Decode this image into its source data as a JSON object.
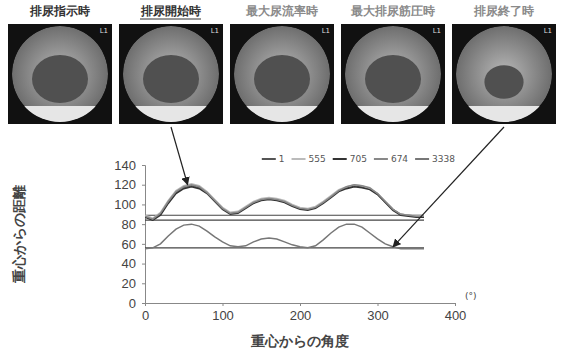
{
  "chart_data": {
    "type": "line",
    "xlabel": "重心からの角度",
    "ylabel": "重心からの距離",
    "x_unit_label": "(°)",
    "x": [
      0,
      10,
      20,
      30,
      40,
      50,
      60,
      70,
      80,
      90,
      100,
      110,
      120,
      130,
      140,
      150,
      160,
      170,
      180,
      190,
      200,
      210,
      220,
      230,
      240,
      250,
      260,
      270,
      280,
      290,
      300,
      310,
      320,
      330,
      340,
      350,
      360
    ],
    "series": [
      {
        "name": "1",
        "color": "#555555",
        "values": [
          88,
          84,
          90,
          102,
          112,
          117,
          119,
          117,
          112,
          104,
          96,
          91,
          92,
          97,
          102,
          105,
          106,
          105,
          103,
          99,
          96,
          95,
          97,
          102,
          108,
          114,
          117,
          119,
          118,
          116,
          111,
          103,
          95,
          90,
          89,
          88,
          88
        ]
      },
      {
        "name": "555",
        "color": "#bbbbbb",
        "values": [
          89,
          86,
          92,
          104,
          114,
          119,
          121,
          119,
          113,
          105,
          97,
          92,
          93,
          98,
          103,
          106,
          107,
          106,
          104,
          100,
          97,
          96,
          98,
          103,
          109,
          115,
          118,
          120,
          119,
          116,
          110,
          102,
          94,
          90,
          89,
          89,
          89
        ]
      },
      {
        "name": "705",
        "color": "#333333",
        "values": [
          87,
          84,
          89,
          101,
          111,
          116,
          118,
          116,
          111,
          103,
          95,
          90,
          91,
          96,
          101,
          104,
          105,
          104,
          102,
          98,
          95,
          94,
          96,
          101,
          107,
          113,
          116,
          118,
          117,
          115,
          110,
          102,
          94,
          89,
          88,
          87,
          87
        ]
      },
      {
        "name": "674",
        "color": "#888888",
        "values": [
          88,
          85,
          91,
          103,
          113,
          118,
          120,
          118,
          112,
          104,
          96,
          91,
          92,
          97,
          102,
          105,
          106,
          105,
          103,
          99,
          96,
          95,
          97,
          102,
          108,
          114,
          118,
          120,
          119,
          117,
          111,
          103,
          95,
          90,
          89,
          88,
          88
        ]
      },
      {
        "name": "3338",
        "color": "#777777",
        "values": [
          55,
          56,
          60,
          68,
          75,
          79,
          80,
          78,
          73,
          67,
          62,
          58,
          57,
          58,
          62,
          65,
          66,
          65,
          62,
          59,
          57,
          56,
          58,
          64,
          71,
          77,
          80,
          80,
          77,
          71,
          65,
          60,
          57,
          55,
          55,
          55,
          55
        ]
      }
    ],
    "hlines": [
      89,
      84,
      56
    ],
    "arrows": [
      {
        "panel": 1,
        "x": 55,
        "y": 120
      },
      {
        "panel": 4,
        "x": 320,
        "y": 57
      }
    ],
    "xlim": [
      0,
      400
    ],
    "xticks": [
      0,
      100,
      200,
      300,
      400
    ],
    "ylim": [
      0,
      140
    ],
    "yticks": [
      0,
      20,
      40,
      60,
      80,
      100,
      120,
      140
    ],
    "grid": false,
    "legend": "upper right"
  },
  "panels": [
    {
      "title": "排尿指示時",
      "corner_label": "L1"
    },
    {
      "title": "排尿開始時",
      "corner_label": "L1"
    },
    {
      "title": "最大尿流率時",
      "corner_label": "L1"
    },
    {
      "title": "最大排尿筋圧時",
      "corner_label": "L1"
    },
    {
      "title": "排尿終了時",
      "corner_label": "L1"
    }
  ]
}
